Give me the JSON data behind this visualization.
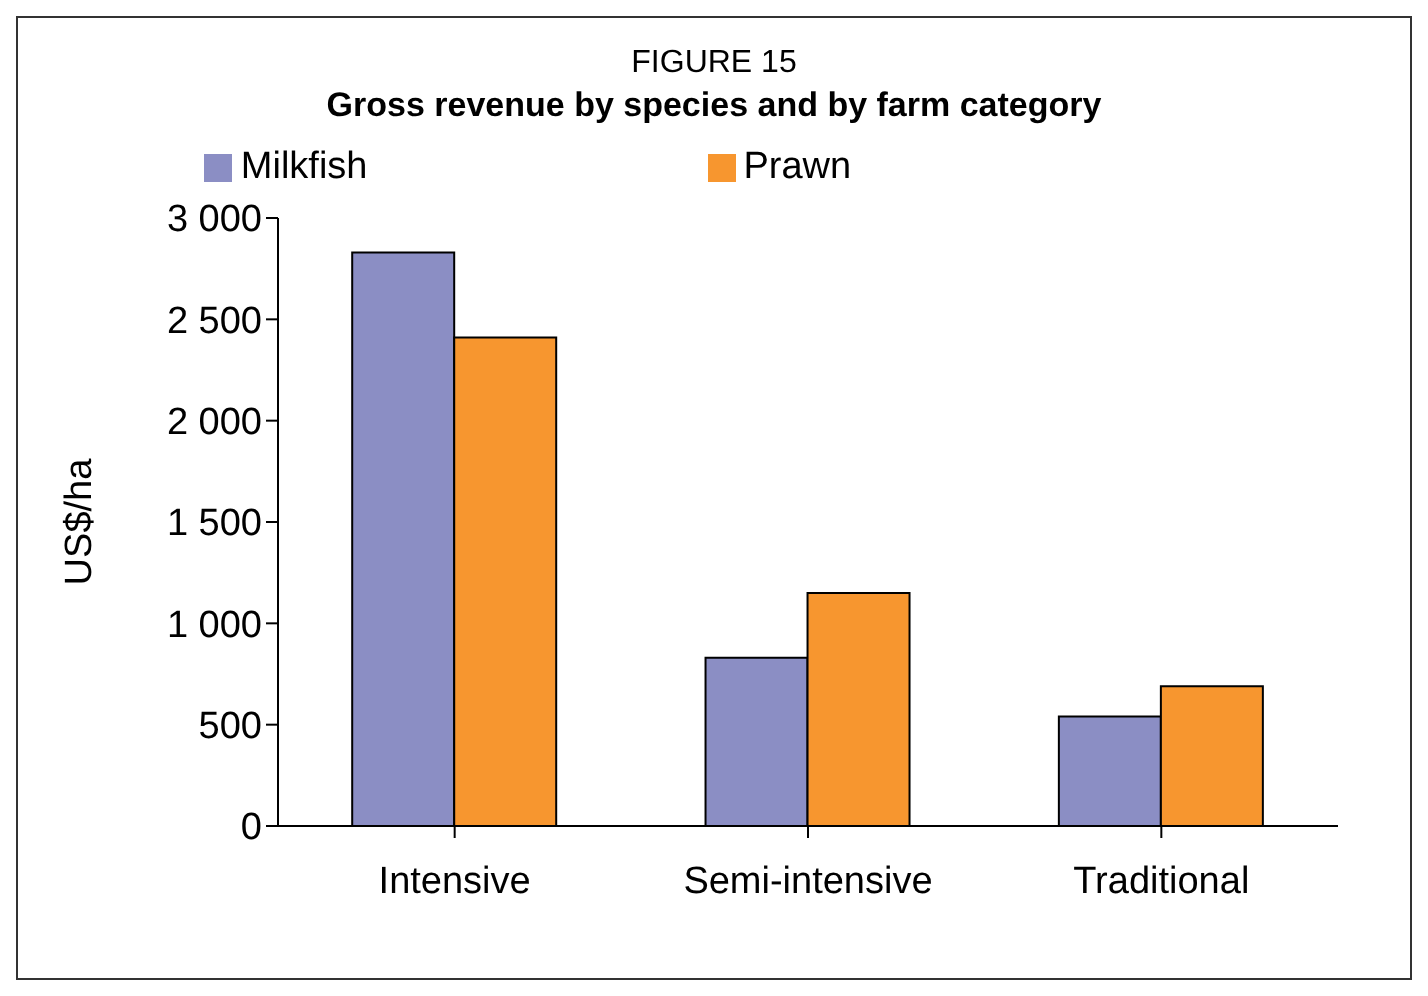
{
  "chart_data": {
    "type": "bar",
    "title": "FIGURE 15",
    "subtitle": "Gross revenue by species and by farm category",
    "ylabel": "US$/ha",
    "categories": [
      "Intensive",
      "Semi-intensive",
      "Traditional"
    ],
    "series": [
      {
        "name": "Milkfish",
        "color": "#8b8ec4",
        "values": [
          2830,
          830,
          540
        ]
      },
      {
        "name": "Prawn",
        "color": "#f7962f",
        "values": [
          2410,
          1150,
          690
        ]
      }
    ],
    "ylim": [
      0,
      3000
    ],
    "yticks": [
      0,
      500,
      {
        "value": 1000,
        "label": "1 000"
      },
      {
        "value": 1500,
        "label": "1 500"
      },
      {
        "value": 2000,
        "label": "2 000"
      },
      {
        "value": 2500,
        "label": "2 500"
      },
      {
        "value": 3000,
        "label": "3 000"
      }
    ],
    "grid": false,
    "legend": "top"
  }
}
